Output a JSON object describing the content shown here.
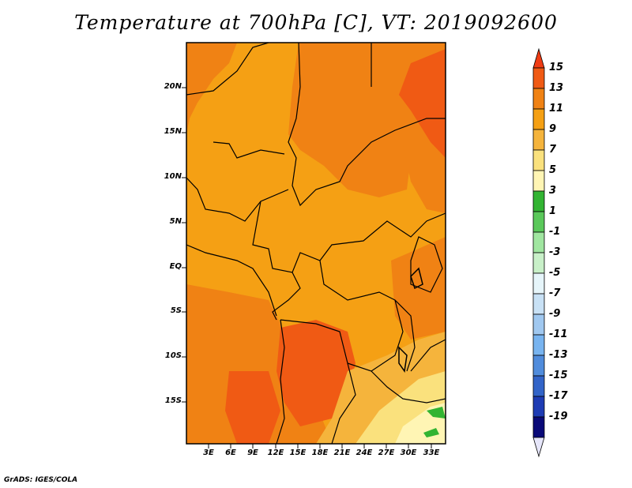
{
  "title": "Temperature at 700hPa [C], VT: 2019092600",
  "credit": "GrADS: IGES/COLA",
  "map": {
    "lat_labels": [
      "20N",
      "15N",
      "10N",
      "5N",
      "EQ",
      "5S",
      "10S",
      "15S"
    ],
    "lon_labels": [
      "3E",
      "6E",
      "9E",
      "12E",
      "15E",
      "18E",
      "21E",
      "24E",
      "27E",
      "30E",
      "33E"
    ],
    "field": "Temperature",
    "level": "700hPa",
    "units": "C",
    "valid_time": "2019092600"
  },
  "colorbar": {
    "labels": [
      "15",
      "13",
      "11",
      "9",
      "7",
      "5",
      "3",
      "1",
      "-1",
      "-3",
      "-5",
      "-7",
      "-9",
      "-11",
      "-13",
      "-15",
      "-17",
      "-19"
    ],
    "colors": [
      "#f03c14",
      "#f05a14",
      "#f08214",
      "#f5a014",
      "#f5b43c",
      "#fae17d",
      "#fff5b4",
      "#32b432",
      "#5ac85a",
      "#a0e6a0",
      "#c8f0c8",
      "#e6f5fa",
      "#c8e1f5",
      "#a0c8f0",
      "#78b4f0",
      "#508cdc",
      "#3264c8",
      "#1e3cb4",
      "#0a0a78",
      "#e6e6fa"
    ]
  }
}
